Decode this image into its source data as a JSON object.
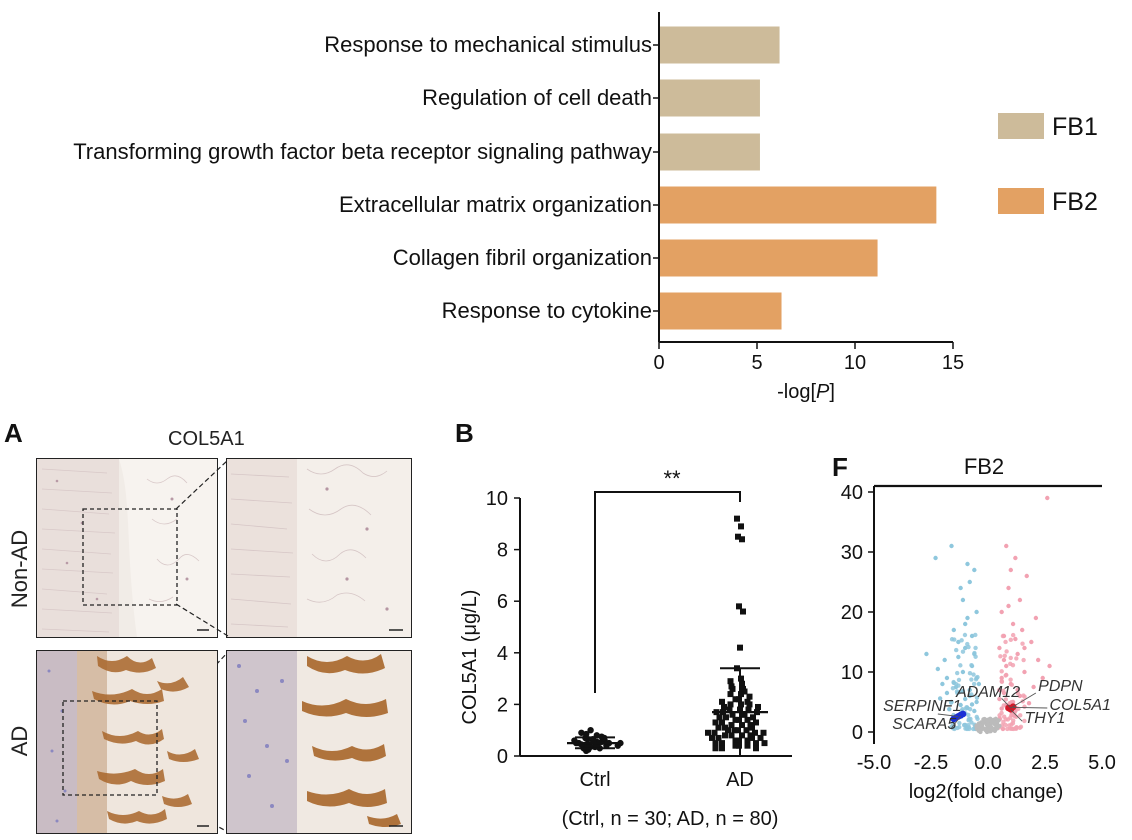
{
  "colors": {
    "fb1": "#cdbb9a",
    "fb2": "#e3a163",
    "up": "#f2a2b2",
    "down": "#8ec7dd",
    "ns": "#bbbbbb",
    "axis": "#111111",
    "stain_brown": "#a9672b",
    "hematoxylin": "#8b88c0"
  },
  "top_chart": {
    "chart_data": {
      "type": "bar",
      "orientation": "horizontal",
      "categories": [
        "Response to mechanical stimulus",
        "Regulation of cell death",
        "Transforming growth factor beta receptor signaling pathway",
        "Extracellular matrix organization",
        "Collagen fibril organization",
        "Response to cytokine"
      ],
      "values": [
        6.1,
        5.1,
        5.1,
        14.1,
        11.1,
        6.2
      ],
      "groups": [
        "FB1",
        "FB1",
        "FB1",
        "FB2",
        "FB2",
        "FB2"
      ],
      "xlim": [
        0,
        15
      ],
      "xticks": [
        "0",
        "5",
        "10",
        "15"
      ],
      "xlabel_pre": "-log[",
      "xlabel_italic": "P",
      "xlabel_post": "]",
      "legend": [
        "FB1",
        "FB2"
      ],
      "legend_position": "right"
    }
  },
  "panel_a": {
    "letter": "A",
    "title": "COL5A1",
    "row_labels": [
      "Non-AD",
      "AD"
    ]
  },
  "panel_b": {
    "letter": "B",
    "chart_data": {
      "type": "scatter",
      "categories": [
        "Ctrl",
        "AD"
      ],
      "ylabel": "COL5A1 (μg/L)",
      "ylim": [
        0,
        10
      ],
      "yticks": [
        "0",
        "2",
        "4",
        "6",
        "8",
        "10"
      ],
      "significance": "**",
      "caption": "(Ctrl, n = 30; AD, n = 80)",
      "summary": [
        {
          "group": "Ctrl",
          "mean": 0.5,
          "sd_low": 0.3,
          "sd_high": 0.72
        },
        {
          "group": "AD",
          "mean": 1.7,
          "sd_low": 0.0,
          "sd_high": 3.4
        }
      ],
      "points": {
        "Ctrl": [
          0.2,
          0.25,
          0.3,
          0.3,
          0.35,
          0.35,
          0.4,
          0.4,
          0.4,
          0.45,
          0.45,
          0.45,
          0.5,
          0.5,
          0.5,
          0.5,
          0.55,
          0.55,
          0.55,
          0.6,
          0.6,
          0.65,
          0.65,
          0.7,
          0.7,
          0.75,
          0.8,
          0.85,
          0.9,
          1.0
        ],
        "AD": [
          9.2,
          8.9,
          8.5,
          8.4,
          5.8,
          5.6,
          4.2,
          3.4,
          3.0,
          2.9,
          2.8,
          2.7,
          2.6,
          2.6,
          2.5,
          2.4,
          2.4,
          2.3,
          2.2,
          2.2,
          2.1,
          2.1,
          2.0,
          2.0,
          2.0,
          1.9,
          1.9,
          1.8,
          1.8,
          1.8,
          1.7,
          1.7,
          1.7,
          1.6,
          1.6,
          1.6,
          1.5,
          1.5,
          1.5,
          1.4,
          1.4,
          1.4,
          1.3,
          1.3,
          1.3,
          1.2,
          1.2,
          1.2,
          1.1,
          1.1,
          1.1,
          1.0,
          1.0,
          1.0,
          1.0,
          0.9,
          0.9,
          0.9,
          0.9,
          0.8,
          0.8,
          0.8,
          0.8,
          0.7,
          0.7,
          0.7,
          0.7,
          0.6,
          0.6,
          0.6,
          0.5,
          0.5,
          0.5,
          0.5,
          0.4,
          0.4,
          0.4,
          0.3,
          0.3,
          0.3
        ]
      }
    }
  },
  "panel_f": {
    "letter": "F",
    "chart_data": {
      "type": "scatter",
      "subtype": "volcano",
      "title": "FB2",
      "xlabel": "log2(fold change)",
      "xlim": [
        -5.0,
        5.0
      ],
      "ylim": [
        -1,
        41
      ],
      "xticks": [
        "-5.0",
        "-2.5",
        "0.0",
        "2.5",
        "5.0"
      ],
      "yticks": [
        "0",
        "10",
        "20",
        "30",
        "40"
      ],
      "labels": [
        {
          "text": "ADAM12",
          "x": -1.4,
          "y": 5.8
        },
        {
          "text": "PDPN",
          "x": 2.2,
          "y": 6.8
        },
        {
          "text": "COL5A1",
          "x": 2.7,
          "y": 3.7
        },
        {
          "text": "THY1",
          "x": 1.6,
          "y": 1.5
        },
        {
          "text": "SERPINF1",
          "x": -4.6,
          "y": 3.5
        },
        {
          "text": "SCARA5",
          "x": -4.2,
          "y": 0.5
        }
      ],
      "highlighted_down": [
        [
          -1.2,
          2.8
        ],
        [
          -1.3,
          2.6
        ],
        [
          -1.4,
          2.4
        ],
        [
          -1.5,
          2.2
        ],
        [
          -1.1,
          3.0
        ]
      ],
      "highlighted_up": [
        [
          0.9,
          4.0
        ],
        [
          1.0,
          3.8
        ],
        [
          1.1,
          4.2
        ]
      ],
      "down": [
        [
          -1.8,
          6.5
        ],
        [
          -1.5,
          8.2
        ],
        [
          -2.3,
          29
        ],
        [
          -1.1,
          22
        ],
        [
          -1.6,
          31
        ],
        [
          -0.9,
          28
        ],
        [
          -0.8,
          25
        ],
        [
          -1.0,
          18
        ],
        [
          -1.3,
          15
        ],
        [
          -0.6,
          13
        ],
        [
          -1.9,
          12
        ],
        [
          -0.7,
          11
        ],
        [
          -1.1,
          10
        ],
        [
          -2.0,
          8
        ],
        [
          -0.5,
          9
        ],
        [
          -1.4,
          7.5
        ],
        [
          -0.8,
          6
        ],
        [
          -1.6,
          5
        ],
        [
          -1.2,
          4.5
        ],
        [
          -0.9,
          4
        ],
        [
          -0.6,
          3.5
        ],
        [
          -1.7,
          3.8
        ],
        [
          -2.1,
          5.6
        ],
        [
          -0.7,
          16
        ],
        [
          -0.9,
          19
        ],
        [
          -1.2,
          24
        ],
        [
          -0.5,
          20
        ],
        [
          -0.6,
          27
        ],
        [
          -1.0,
          14
        ],
        [
          -1.5,
          17
        ],
        [
          -0.4,
          8
        ],
        [
          -1.3,
          12.5
        ],
        [
          -2.2,
          10.5
        ],
        [
          -1.8,
          9
        ],
        [
          -2.7,
          13
        ],
        [
          -0.8,
          7
        ],
        [
          -1.0,
          5.5
        ],
        [
          -0.5,
          5
        ],
        [
          -0.7,
          4.6
        ],
        [
          -1.1,
          6.8
        ]
      ],
      "up": [
        [
          2.6,
          39
        ],
        [
          0.8,
          31
        ],
        [
          1.2,
          29
        ],
        [
          1.7,
          26
        ],
        [
          0.9,
          24
        ],
        [
          1.4,
          22
        ],
        [
          0.6,
          20
        ],
        [
          1.1,
          18
        ],
        [
          0.7,
          16
        ],
        [
          1.9,
          15
        ],
        [
          0.5,
          14
        ],
        [
          1.3,
          13
        ],
        [
          2.2,
          12
        ],
        [
          0.8,
          11
        ],
        [
          1.6,
          10
        ],
        [
          0.6,
          9
        ],
        [
          1.0,
          8
        ],
        [
          2.0,
          7.5
        ],
        [
          0.7,
          6.5
        ],
        [
          1.4,
          6
        ],
        [
          0.5,
          5.5
        ],
        [
          1.1,
          5
        ],
        [
          0.8,
          4.5
        ],
        [
          1.8,
          4.8
        ],
        [
          0.6,
          3.9
        ],
        [
          1.2,
          3.5
        ],
        [
          2.4,
          9
        ],
        [
          1.5,
          17
        ],
        [
          0.9,
          21
        ],
        [
          1.0,
          27
        ],
        [
          0.7,
          12
        ],
        [
          1.3,
          7
        ],
        [
          2.7,
          11
        ],
        [
          0.5,
          7
        ],
        [
          1.6,
          14
        ],
        [
          2.1,
          19
        ],
        [
          0.8,
          9.5
        ],
        [
          1.2,
          15.5
        ]
      ],
      "ns": [
        [
          -0.4,
          0.2
        ],
        [
          -0.3,
          0.4
        ],
        [
          -0.2,
          0.6
        ],
        [
          -0.1,
          0.3
        ],
        [
          0.0,
          0.5
        ],
        [
          0.1,
          0.8
        ],
        [
          0.2,
          0.4
        ],
        [
          0.3,
          0.2
        ],
        [
          0.4,
          0.6
        ],
        [
          -0.5,
          0.9
        ],
        [
          0.5,
          1.0
        ],
        [
          -0.3,
          1.2
        ],
        [
          0.3,
          1.3
        ],
        [
          -0.2,
          1.5
        ],
        [
          0.2,
          1.6
        ],
        [
          0.0,
          1.8
        ],
        [
          -0.4,
          1.4
        ],
        [
          0.4,
          1.1
        ],
        [
          -0.1,
          2.0
        ],
        [
          0.1,
          2.2
        ]
      ]
    }
  }
}
